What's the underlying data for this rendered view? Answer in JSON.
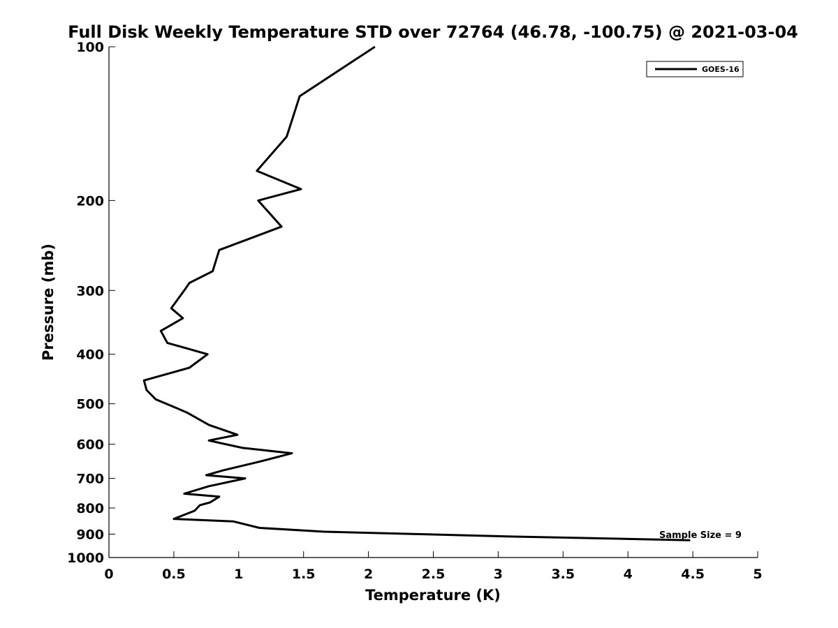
{
  "chart_data": {
    "type": "line",
    "title": "Full Disk Weekly Temperature STD over 72764 (46.78, -100.75) @ 2021-03-04",
    "xlabel": "Temperature (K)",
    "ylabel": "Pressure (mb)",
    "xlim": [
      0,
      5
    ],
    "ylim": [
      100,
      1000
    ],
    "y_scale": "log",
    "y_reversed": true,
    "x_ticks": [
      0,
      0.5,
      1,
      1.5,
      2,
      2.5,
      3,
      3.5,
      4,
      4.5,
      5
    ],
    "x_tick_labels": [
      "0",
      "0.5",
      "1",
      "1.5",
      "2",
      "2.5",
      "3",
      "3.5",
      "4",
      "4.5",
      "5"
    ],
    "y_ticks": [
      100,
      200,
      300,
      400,
      500,
      600,
      700,
      800,
      900,
      1000
    ],
    "y_tick_labels": [
      "100",
      "200",
      "300",
      "400",
      "500",
      "600",
      "700",
      "800",
      "900",
      "1000"
    ],
    "grid": false,
    "legend_position": "top-right",
    "series": [
      {
        "name": "GOES-16",
        "color": "#000000",
        "x": [
          2.05,
          1.47,
          1.37,
          1.14,
          1.48,
          1.15,
          1.33,
          0.85,
          0.8,
          0.62,
          0.58,
          0.48,
          0.57,
          0.4,
          0.45,
          0.76,
          0.62,
          0.27,
          0.29,
          0.36,
          0.6,
          0.77,
          0.99,
          0.77,
          1.03,
          1.41,
          1.15,
          0.88,
          0.75,
          1.05,
          0.77,
          0.58,
          0.85,
          0.78,
          0.7,
          0.66,
          0.5,
          0.96,
          1.16,
          1.66,
          3.12,
          4.48
        ],
        "y": [
          100,
          125,
          150,
          175,
          190,
          200,
          225,
          250,
          275,
          290,
          300,
          325,
          340,
          360,
          380,
          400,
          425,
          450,
          470,
          490,
          520,
          550,
          575,
          590,
          610,
          625,
          650,
          675,
          690,
          700,
          725,
          750,
          760,
          780,
          790,
          810,
          840,
          850,
          875,
          890,
          910,
          925
        ]
      }
    ],
    "annotations": [
      "Sample Size = 9"
    ]
  }
}
